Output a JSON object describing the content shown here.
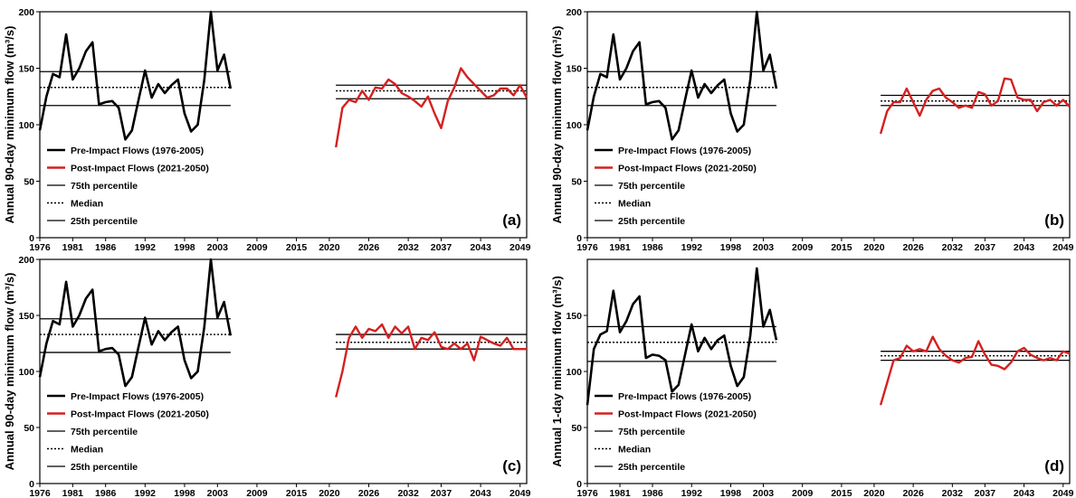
{
  "chart_data": [
    {
      "type": "line",
      "panel_label": "(a)",
      "ylabel_main": "Annual 90-day minimum flow",
      "ylabel_unit": "(m³/s)",
      "xlim": [
        1976,
        2050
      ],
      "ylim": [
        0,
        200
      ],
      "x_ticks": [
        "1976",
        "1981",
        "1986",
        "1992",
        "1998",
        "2003",
        "2009",
        "2015",
        "2020",
        "2026",
        "2032",
        "2037",
        "2043",
        "2049"
      ],
      "y_ticks": [
        "0",
        "50",
        "100",
        "150",
        "200"
      ],
      "series": [
        {
          "name": "Pre-Impact Flows (1976-2005)",
          "color": "#000000",
          "x": [
            1976,
            1977,
            1978,
            1979,
            1980,
            1981,
            1982,
            1983,
            1984,
            1985,
            1986,
            1987,
            1988,
            1989,
            1990,
            1991,
            1992,
            1993,
            1994,
            1995,
            1996,
            1997,
            1998,
            1999,
            2000,
            2001,
            2002,
            2003,
            2004,
            2005
          ],
          "y": [
            95,
            125,
            145,
            142,
            180,
            140,
            150,
            165,
            173,
            118,
            120,
            121,
            115,
            87,
            95,
            122,
            148,
            124,
            136,
            128,
            135,
            140,
            110,
            94,
            100,
            140,
            200,
            148,
            162,
            132
          ]
        },
        {
          "name": "Post-Impact Flows (2021-2050)",
          "color": "#d42020",
          "x": [
            2021,
            2022,
            2023,
            2024,
            2025,
            2026,
            2027,
            2028,
            2029,
            2030,
            2031,
            2032,
            2033,
            2034,
            2035,
            2036,
            2037,
            2038,
            2039,
            2040,
            2041,
            2042,
            2043,
            2044,
            2045,
            2046,
            2047,
            2048,
            2049,
            2050
          ],
          "y": [
            80,
            115,
            122,
            120,
            130,
            122,
            133,
            132,
            140,
            136,
            128,
            125,
            121,
            116,
            125,
            110,
            97,
            121,
            133,
            150,
            142,
            136,
            130,
            124,
            126,
            132,
            132,
            126,
            135,
            124
          ]
        }
      ],
      "ref_lines": {
        "pre": {
          "p75": 147,
          "median": 133,
          "p25": 117
        },
        "post": {
          "p75": 135,
          "median": 130,
          "p25": 123
        }
      }
    },
    {
      "type": "line",
      "panel_label": "(b)",
      "ylabel_main": "Annual 90-day minimum flow",
      "ylabel_unit": "(m³/s)",
      "xlim": [
        1976,
        2050
      ],
      "ylim": [
        0,
        200
      ],
      "x_ticks": [
        "1976",
        "1981",
        "1986",
        "1992",
        "1998",
        "2003",
        "2009",
        "2015",
        "2020",
        "2026",
        "2032",
        "2037",
        "2043",
        "2049"
      ],
      "y_ticks": [
        "0",
        "50",
        "100",
        "150",
        "200"
      ],
      "series": [
        {
          "name": "Pre-Impact Flows (1976-2005)",
          "color": "#000000",
          "x": [
            1976,
            1977,
            1978,
            1979,
            1980,
            1981,
            1982,
            1983,
            1984,
            1985,
            1986,
            1987,
            1988,
            1989,
            1990,
            1991,
            1992,
            1993,
            1994,
            1995,
            1996,
            1997,
            1998,
            1999,
            2000,
            2001,
            2002,
            2003,
            2004,
            2005
          ],
          "y": [
            95,
            125,
            145,
            142,
            180,
            140,
            150,
            165,
            173,
            118,
            120,
            121,
            115,
            87,
            95,
            122,
            148,
            124,
            136,
            128,
            135,
            140,
            110,
            94,
            100,
            140,
            200,
            148,
            162,
            132
          ]
        },
        {
          "name": "Post-Impact Flows (2021-2050)",
          "color": "#d42020",
          "x": [
            2021,
            2022,
            2023,
            2024,
            2025,
            2026,
            2027,
            2028,
            2029,
            2030,
            2031,
            2032,
            2033,
            2034,
            2035,
            2036,
            2037,
            2038,
            2039,
            2040,
            2041,
            2042,
            2043,
            2044,
            2045,
            2046,
            2047,
            2048,
            2049,
            2050
          ],
          "y": [
            92,
            112,
            120,
            120,
            132,
            120,
            108,
            122,
            130,
            132,
            124,
            120,
            115,
            117,
            115,
            129,
            127,
            117,
            121,
            141,
            140,
            124,
            122,
            122,
            112,
            120,
            122,
            117,
            122,
            116
          ]
        }
      ],
      "ref_lines": {
        "pre": {
          "p75": 147,
          "median": 133,
          "p25": 117
        },
        "post": {
          "p75": 126,
          "median": 121,
          "p25": 117
        }
      }
    },
    {
      "type": "line",
      "panel_label": "(c)",
      "ylabel_main": "Annual 90-day minimum flow",
      "ylabel_unit": "(m³/s)",
      "xlim": [
        1976,
        2050
      ],
      "ylim": [
        0,
        200
      ],
      "x_ticks": [
        "1976",
        "1981",
        "1986",
        "1992",
        "1998",
        "2003",
        "2009",
        "2015",
        "2020",
        "2026",
        "2032",
        "2037",
        "2043",
        "2049"
      ],
      "y_ticks": [
        "0",
        "50",
        "100",
        "150",
        "200"
      ],
      "series": [
        {
          "name": "Pre-Impact Flows (1976-2005)",
          "color": "#000000",
          "x": [
            1976,
            1977,
            1978,
            1979,
            1980,
            1981,
            1982,
            1983,
            1984,
            1985,
            1986,
            1987,
            1988,
            1989,
            1990,
            1991,
            1992,
            1993,
            1994,
            1995,
            1996,
            1997,
            1998,
            1999,
            2000,
            2001,
            2002,
            2003,
            2004,
            2005
          ],
          "y": [
            95,
            125,
            145,
            142,
            180,
            140,
            150,
            165,
            173,
            118,
            120,
            121,
            115,
            87,
            95,
            122,
            148,
            124,
            136,
            128,
            135,
            140,
            110,
            94,
            100,
            140,
            200,
            148,
            162,
            132
          ]
        },
        {
          "name": "Post-Impact Flows (2021-2050)",
          "color": "#d42020",
          "x": [
            2021,
            2022,
            2023,
            2024,
            2025,
            2026,
            2027,
            2028,
            2029,
            2030,
            2031,
            2032,
            2033,
            2034,
            2035,
            2036,
            2037,
            2038,
            2039,
            2040,
            2041,
            2042,
            2043,
            2044,
            2045,
            2046,
            2047,
            2048,
            2049,
            2050
          ],
          "y": [
            77,
            100,
            130,
            140,
            130,
            138,
            136,
            142,
            130,
            140,
            134,
            140,
            120,
            130,
            128,
            135,
            122,
            120,
            125,
            120,
            125,
            110,
            131,
            128,
            125,
            123,
            130,
            120,
            120,
            120
          ]
        }
      ],
      "ref_lines": {
        "pre": {
          "p75": 147,
          "median": 133,
          "p25": 117
        },
        "post": {
          "p75": 133,
          "median": 126,
          "p25": 120
        }
      }
    },
    {
      "type": "line",
      "panel_label": "(d)",
      "ylabel_main": "Annual 1-day minimum flow",
      "ylabel_unit": "(m³/s)",
      "xlim": [
        1976,
        2050
      ],
      "ylim": [
        0,
        200
      ],
      "x_ticks": [
        "1976",
        "1981",
        "1986",
        "1992",
        "1998",
        "2003",
        "2009",
        "2015",
        "2020",
        "2026",
        "2032",
        "2037",
        "2043",
        "2049"
      ],
      "y_ticks": [
        "0",
        "50",
        "100",
        "150"
      ],
      "series": [
        {
          "name": "Pre-Impact Flows (1976-2005)",
          "color": "#000000",
          "x": [
            1976,
            1977,
            1978,
            1979,
            1980,
            1981,
            1982,
            1983,
            1984,
            1985,
            1986,
            1987,
            1988,
            1989,
            1990,
            1991,
            1992,
            1993,
            1994,
            1995,
            1996,
            1997,
            1998,
            1999,
            2000,
            2001,
            2002,
            2003,
            2004,
            2005
          ],
          "y": [
            70,
            120,
            133,
            136,
            172,
            135,
            145,
            160,
            167,
            112,
            115,
            114,
            110,
            82,
            88,
            115,
            142,
            118,
            130,
            120,
            128,
            132,
            105,
            87,
            95,
            132,
            192,
            140,
            155,
            128
          ]
        },
        {
          "name": "Post-Impact Flows (2021-2050)",
          "color": "#d42020",
          "x": [
            2021,
            2022,
            2023,
            2024,
            2025,
            2026,
            2027,
            2028,
            2029,
            2030,
            2031,
            2032,
            2033,
            2034,
            2035,
            2036,
            2037,
            2038,
            2039,
            2040,
            2041,
            2042,
            2043,
            2044,
            2045,
            2046,
            2047,
            2048,
            2049,
            2050
          ],
          "y": [
            70,
            90,
            110,
            112,
            123,
            118,
            120,
            118,
            131,
            120,
            114,
            110,
            108,
            112,
            113,
            127,
            115,
            106,
            105,
            102,
            108,
            118,
            121,
            115,
            112,
            110,
            112,
            110,
            118,
            116
          ]
        }
      ],
      "ref_lines": {
        "pre": {
          "p75": 140,
          "median": 126,
          "p25": 109
        },
        "post": {
          "p75": 118,
          "median": 114,
          "p25": 110
        }
      }
    }
  ],
  "legend": {
    "pre": "Pre-Impact Flows (1976-2005)",
    "post": "Post-Impact Flows (2021-2050)",
    "p75": "75th percentile",
    "median": "Median",
    "p25": "25th percentile"
  }
}
